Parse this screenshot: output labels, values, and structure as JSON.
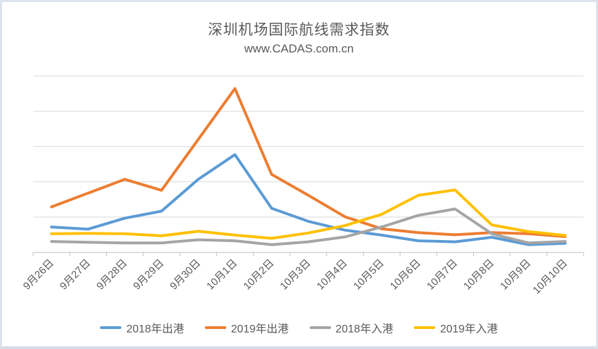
{
  "chart_data": {
    "type": "line",
    "title": "深圳机场国际航线需求指数",
    "subtitle": "www.CADAS.com.cn",
    "categories": [
      "9月26日",
      "9月27日",
      "9月28日",
      "9月29日",
      "9月30日",
      "10月1日",
      "10月2日",
      "10月3日",
      "10月4日",
      "10月5日",
      "10月6日",
      "10月7日",
      "10月8日",
      "10月9日",
      "10月10日"
    ],
    "series": [
      {
        "name": "2018年出港",
        "color": "#5B9BD5",
        "values": [
          0.72,
          0.66,
          0.97,
          1.17,
          2.07,
          2.77,
          1.25,
          0.88,
          0.63,
          0.49,
          0.33,
          0.3,
          0.43,
          0.22,
          0.26
        ]
      },
      {
        "name": "2019年出港",
        "color": "#ED7D31",
        "values": [
          1.29,
          1.68,
          2.07,
          1.76,
          3.2,
          4.64,
          2.21,
          1.62,
          1.01,
          0.67,
          0.56,
          0.5,
          0.56,
          0.53,
          0.45
        ]
      },
      {
        "name": "2018年入港",
        "color": "#A5A5A5",
        "values": [
          0.31,
          0.29,
          0.27,
          0.27,
          0.36,
          0.33,
          0.22,
          0.3,
          0.44,
          0.72,
          1.05,
          1.23,
          0.53,
          0.27,
          0.31
        ]
      },
      {
        "name": "2019年入港",
        "color": "#FFC000",
        "values": [
          0.53,
          0.54,
          0.53,
          0.47,
          0.6,
          0.49,
          0.4,
          0.55,
          0.76,
          1.08,
          1.62,
          1.77,
          0.78,
          0.59,
          0.48
        ]
      }
    ],
    "ylim": [
      0,
      5
    ],
    "y_axis_labels": "none (unlabeled gridlines, spacing = 1 index unit)",
    "grid_on": true,
    "legend_position": "bottom",
    "colors": {
      "gridline": "#D9D9D9",
      "axis_line": "#BFBFBF",
      "text": "#595959",
      "frame_border": "#dce3ec",
      "background": "#ffffff"
    }
  }
}
